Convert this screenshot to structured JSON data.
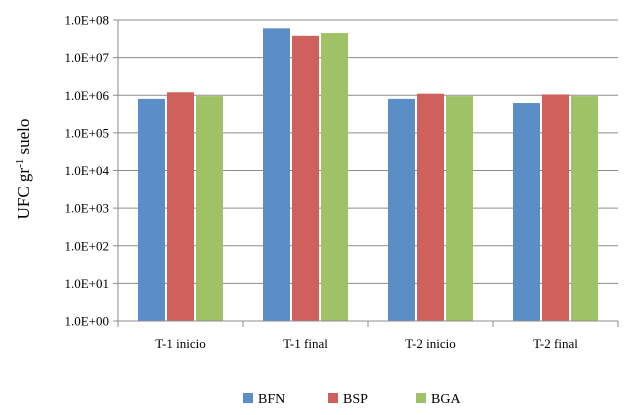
{
  "chart_data": {
    "type": "bar",
    "scale": "log",
    "ylabel_main": "UFC gr",
    "ylabel_sup": "-1",
    "ylabel_tail": " suelo",
    "xlabel": "",
    "y_ticks": [
      "1.0E+00",
      "1.0E+01",
      "1.0E+02",
      "1.0E+03",
      "1.0E+04",
      "1.0E+05",
      "1.0E+06",
      "1.0E+07",
      "1.0E+08"
    ],
    "ylim": [
      1,
      100000000
    ],
    "grid": true,
    "legend_position": "bottom",
    "categories": [
      "T-1 inicio",
      "T-1 final",
      "T-2 inicio",
      "T-2 final"
    ],
    "series": [
      {
        "name": "BFN",
        "color": "#5b8ec7",
        "values": [
          800000,
          60000000,
          800000,
          620000
        ]
      },
      {
        "name": "BSP",
        "color": "#d0605c",
        "values": [
          1200000,
          38000000,
          1100000,
          1050000
        ]
      },
      {
        "name": "BGA",
        "color": "#9fc267",
        "values": [
          950000,
          45000000,
          950000,
          950000
        ]
      }
    ]
  }
}
